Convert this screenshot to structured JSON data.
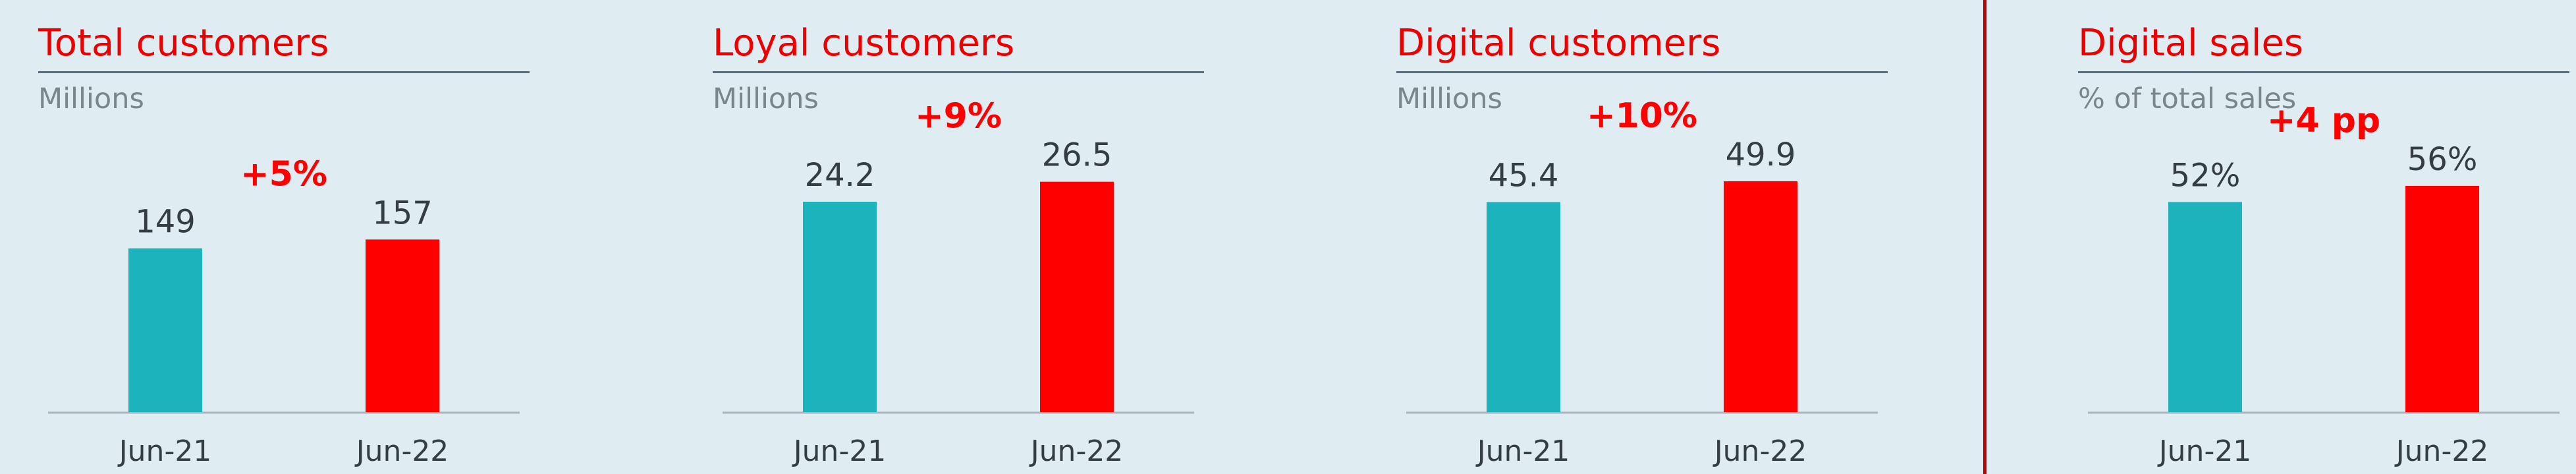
{
  "colors": {
    "primary": "#ec0000",
    "teal": "#1db3bc",
    "accent": "#ff0000",
    "text": "#333d42",
    "baseline": "#aab4ba",
    "divider": "#c00000"
  },
  "chart_data": [
    {
      "type": "bar",
      "title": "Total customers",
      "subtitle": "Millions",
      "categories": [
        "Jun-21",
        "Jun-22"
      ],
      "values": [
        149,
        157
      ],
      "value_labels": [
        "149",
        "157"
      ],
      "change_label": "+5%",
      "ylim": [
        0,
        261
      ]
    },
    {
      "type": "bar",
      "title": "Loyal customers",
      "subtitle": "Millions",
      "categories": [
        "Jun-21",
        "Jun-22"
      ],
      "values": [
        24.2,
        26.5
      ],
      "value_labels": [
        "24.2",
        "26.5"
      ],
      "change_label": "+9%",
      "ylim": [
        0,
        33
      ]
    },
    {
      "type": "bar",
      "title": "Digital customers",
      "subtitle": "Millions",
      "categories": [
        "Jun-21",
        "Jun-22"
      ],
      "values": [
        45.4,
        49.9
      ],
      "value_labels": [
        "45.4",
        "49.9"
      ],
      "change_label": "+10%",
      "ylim": [
        0,
        62
      ]
    },
    {
      "type": "bar",
      "title": "Digital sales",
      "subtitle": "% of total sales",
      "categories": [
        "Jun-21",
        "Jun-22"
      ],
      "values": [
        52,
        56
      ],
      "value_labels": [
        "52%",
        "56%"
      ],
      "change_label": "+4 pp",
      "ylim": [
        0,
        71
      ]
    }
  ]
}
